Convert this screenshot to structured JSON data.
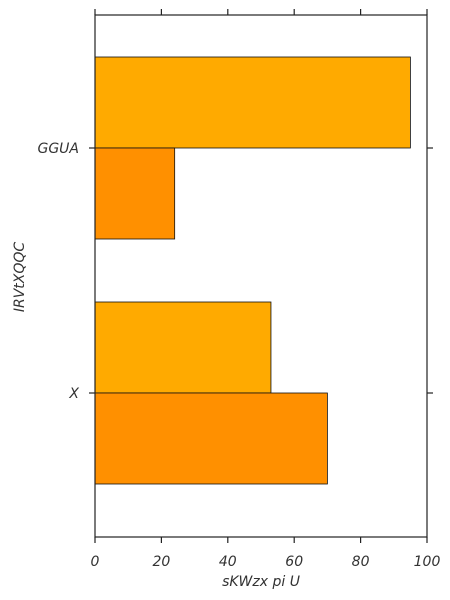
{
  "chart_data": {
    "type": "bar",
    "orientation": "horizontal",
    "categories": [
      "GGUA",
      "X"
    ],
    "series": [
      {
        "color": "#ffaa00",
        "values": [
          95,
          53
        ]
      },
      {
        "color": "#ff9000",
        "values": [
          24,
          70
        ]
      }
    ],
    "xlabel": "sKWzx pi U",
    "ylabel": "IRVtXQQC",
    "xlim": [
      0,
      100
    ],
    "xticks": [
      0,
      20,
      40,
      60,
      80,
      100
    ],
    "grid": false,
    "legend": "none"
  }
}
